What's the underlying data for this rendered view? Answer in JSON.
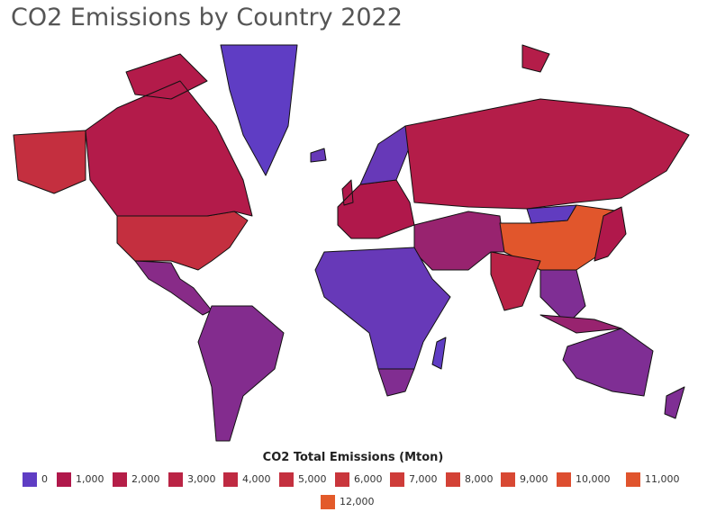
{
  "chart_data": {
    "type": "choropleth",
    "title": "CO2 Emissions by Country 2022",
    "legend_title": "CO2 Total Emissions (Mton)",
    "legend_ticks": [
      0,
      {
        "value": 1000,
        "label": "1,000"
      },
      {
        "value": 2000,
        "label": "2,000"
      },
      {
        "value": 3000,
        "label": "3,000"
      },
      {
        "value": 4000,
        "label": "4,000"
      },
      {
        "value": 5000,
        "label": "5,000"
      },
      {
        "value": 6000,
        "label": "6,000"
      },
      {
        "value": 7000,
        "label": "7,000"
      },
      {
        "value": 8000,
        "label": "8,000"
      },
      {
        "value": 9000,
        "label": "9,000"
      },
      {
        "value": 10000,
        "label": "10,000"
      },
      {
        "value": 11000,
        "label": "11,000"
      },
      {
        "value": 12000,
        "label": "12,000"
      }
    ],
    "colors": [
      "#5f3dc4",
      "#b0184b",
      "#b51e48",
      "#ba2445",
      "#bf2a42",
      "#c4303f",
      "#c9363c",
      "#ce3c39",
      "#d34236",
      "#d84833",
      "#dd4e30",
      "#e0542d",
      "#e35a2a"
    ],
    "values": [
      4900,
      4,
      1500,
      500,
      450,
      1000,
      100,
      1800,
      700,
      11400,
      30,
      2700,
      400,
      1050,
      100,
      420,
      400,
      700,
      4
    ]
  }
}
